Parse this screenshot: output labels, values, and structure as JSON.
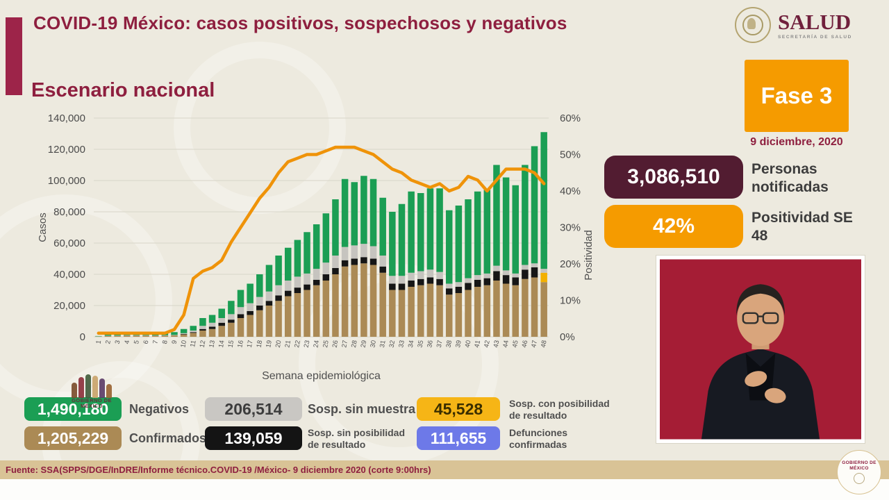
{
  "header": {
    "title": "COVID-19 México: casos positivos, sospechosos y negativos"
  },
  "logo": {
    "name": "SALUD",
    "subtitle": "SECRETARÍA DE SALUD"
  },
  "section": {
    "title": "Escenario nacional"
  },
  "phase": {
    "label": "Fase 3",
    "date": "9 diciembre, 2020",
    "color": "#f59b00"
  },
  "stats": {
    "notified": {
      "value": "3,086,510",
      "label": "Personas notificadas",
      "color": "#521c31"
    },
    "positivity": {
      "value": "42%",
      "label": "Positividad SE 48",
      "color": "#f59b00"
    }
  },
  "chart_data": {
    "type": "bar",
    "stacked": true,
    "title": "Escenario nacional",
    "xlabel": "Semana epidemiológica",
    "ylabel": "Casos",
    "ylabel_right": "Positividad",
    "ylim": [
      0,
      140000
    ],
    "ylim_right": [
      0,
      60
    ],
    "grid": true,
    "yticks": [
      {
        "v": 0,
        "label": "0"
      },
      {
        "v": 20000,
        "label": "20,000"
      },
      {
        "v": 40000,
        "label": "40,000"
      },
      {
        "v": 60000,
        "label": "60,000"
      },
      {
        "v": 80000,
        "label": "80,000"
      },
      {
        "v": 100000,
        "label": "100,000"
      },
      {
        "v": 120000,
        "label": "120,000"
      },
      {
        "v": 140000,
        "label": "140,000"
      }
    ],
    "yticks_right": [
      {
        "v": 0,
        "label": "0%"
      },
      {
        "v": 10,
        "label": "10%"
      },
      {
        "v": 20,
        "label": "20%"
      },
      {
        "v": 30,
        "label": "30%"
      },
      {
        "v": 40,
        "label": "40%"
      },
      {
        "v": 50,
        "label": "50%"
      },
      {
        "v": 60,
        "label": "60%"
      }
    ],
    "categories": [
      1,
      2,
      3,
      4,
      5,
      6,
      7,
      8,
      9,
      10,
      11,
      12,
      13,
      14,
      15,
      16,
      17,
      18,
      19,
      20,
      21,
      22,
      23,
      24,
      25,
      26,
      27,
      28,
      29,
      30,
      31,
      32,
      33,
      34,
      35,
      36,
      37,
      38,
      39,
      40,
      41,
      42,
      43,
      44,
      45,
      46,
      47,
      48
    ],
    "series": [
      {
        "name": "Confirmados",
        "color": "#ab8a55",
        "values": [
          200,
          500,
          600,
          800,
          800,
          800,
          700,
          800,
          1000,
          1500,
          2500,
          4000,
          5000,
          7000,
          9000,
          12000,
          14000,
          17000,
          20000,
          23000,
          26000,
          28000,
          30000,
          33000,
          36000,
          40000,
          45000,
          46000,
          47000,
          46000,
          41000,
          30000,
          30000,
          32000,
          33000,
          34000,
          33000,
          27000,
          28000,
          30000,
          32000,
          33000,
          36000,
          34000,
          33000,
          37000,
          38000,
          35000
        ]
      },
      {
        "name": "Sosp. sin posibilidad de resultado",
        "color": "#161616",
        "values": [
          0,
          0,
          0,
          0,
          0,
          0,
          0,
          0,
          0,
          300,
          500,
          1000,
          1500,
          2000,
          2000,
          2500,
          2500,
          3000,
          3000,
          3500,
          3500,
          3500,
          3500,
          3500,
          4000,
          4000,
          4000,
          4000,
          4000,
          4000,
          4000,
          4000,
          4000,
          4000,
          4000,
          4000,
          4000,
          4000,
          4000,
          4500,
          4500,
          4500,
          6000,
          5500,
          5000,
          6000,
          6500,
          0
        ]
      },
      {
        "name": "Sosp. con posibilidad de resultado",
        "color": "#f3b000",
        "values": [
          0,
          0,
          0,
          0,
          0,
          0,
          0,
          0,
          0,
          0,
          0,
          0,
          0,
          0,
          0,
          0,
          0,
          0,
          0,
          0,
          0,
          0,
          0,
          0,
          0,
          0,
          0,
          0,
          0,
          0,
          0,
          0,
          0,
          0,
          0,
          0,
          0,
          0,
          0,
          0,
          0,
          0,
          0,
          0,
          0,
          0,
          0,
          6000
        ]
      },
      {
        "name": "Sosp. sin muestra",
        "color": "#c6c4bf",
        "values": [
          100,
          200,
          200,
          200,
          200,
          200,
          200,
          200,
          200,
          500,
          1000,
          2000,
          2500,
          3000,
          3500,
          4500,
          5000,
          5500,
          6000,
          6500,
          6500,
          7000,
          7000,
          7000,
          7500,
          8000,
          8500,
          8500,
          8500,
          8000,
          7000,
          5000,
          5000,
          5000,
          5000,
          5000,
          4500,
          3000,
          3000,
          3000,
          3000,
          3000,
          3500,
          3000,
          2500,
          3000,
          2500,
          2500
        ]
      },
      {
        "name": "Negativos",
        "color": "#1b9e54",
        "values": [
          200,
          1300,
          1700,
          2000,
          2000,
          2000,
          1600,
          1500,
          1800,
          2700,
          3000,
          5000,
          5000,
          6000,
          8500,
          11000,
          12500,
          14500,
          17000,
          19000,
          21000,
          23500,
          26500,
          28500,
          31500,
          36000,
          43500,
          40500,
          43500,
          43000,
          37000,
          41000,
          46000,
          52000,
          50000,
          52000,
          53500,
          47000,
          49000,
          50500,
          53500,
          53500,
          64500,
          59500,
          56500,
          64000,
          75000,
          87500
        ]
      }
    ],
    "line_series": {
      "name": "Positividad",
      "color": "#ef9309",
      "axis": "right",
      "values": [
        1,
        1,
        1,
        1,
        1,
        1,
        1,
        1,
        2,
        6,
        16,
        18,
        19,
        21,
        26,
        30,
        34,
        38,
        41,
        45,
        48,
        49,
        50,
        50,
        51,
        52,
        52,
        52,
        51,
        50,
        48,
        46,
        45,
        43,
        42,
        41,
        42,
        40,
        41,
        44,
        43,
        40,
        43,
        46,
        46,
        46,
        45,
        42
      ]
    }
  },
  "legend": {
    "items": [
      {
        "value": "1,490,180",
        "label": "Negativos",
        "color": "#1b9e54",
        "text": "#ffffff"
      },
      {
        "value": "1,205,229",
        "label": "Confirmados",
        "color": "#ab8a55",
        "text": "#ffffff"
      },
      {
        "value": "206,514",
        "label": "Sosp. sin muestra",
        "color": "#c9c7c3",
        "text": "#3c3c3c"
      },
      {
        "value": "139,059",
        "label": "Sosp. sin posibilidad de resultado",
        "color": "#141414",
        "text": "#ffffff"
      },
      {
        "value": "45,528",
        "label": "Sosp. con posibilidad de resultado",
        "color": "#f6b516",
        "text": "#3a2e00"
      },
      {
        "value": "111,655",
        "label": "Defunciones confirmadas",
        "color": "#6d79e8",
        "text": "#ffffff"
      }
    ]
  },
  "watermark": {
    "label": "GOBIERNO DE MÉXICO"
  },
  "seal": {
    "label": "GOBIERNO DE MÉXICO"
  },
  "footer": {
    "source": "Fuente: SSA(SPPS/DGE/InDRE/Informe técnico.COVID-19 /México- 9 diciembre 2020 (corte 9:00hrs)"
  },
  "colors": {
    "accent_maroon": "#9d2449",
    "title_maroon": "#8e1f3f",
    "footer_tan": "#d9c396",
    "interpreter_bg": "#a51d35",
    "background": "#edeadf"
  }
}
